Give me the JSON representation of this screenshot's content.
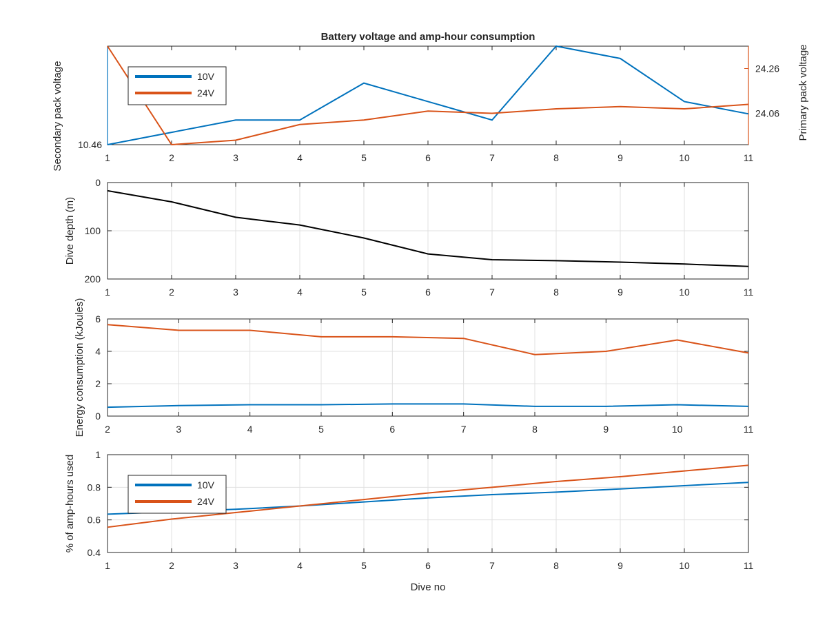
{
  "figure": {
    "title": "Battery voltage and amp-hour consumption",
    "colors": {
      "blue": "#0072bd",
      "orange": "#d95319",
      "black": "#000000",
      "axis": "#262626",
      "grid": "#e0e0e0"
    }
  },
  "chart_data": [
    {
      "id": "voltage",
      "type": "line",
      "title": "Battery voltage and amp-hour consumption",
      "grid": false,
      "legend": "top-left",
      "x": [
        1,
        2,
        3,
        4,
        5,
        6,
        7,
        8,
        9,
        10,
        11
      ],
      "xlim": [
        1,
        11
      ],
      "xticks": [
        "1",
        "2",
        "3",
        "4",
        "5",
        "6",
        "7",
        "8",
        "9",
        "10",
        "11"
      ],
      "xlabel": "",
      "left_axis": {
        "label": "Secondary pack voltage",
        "lim": [
          10.46,
          10.54
        ],
        "ticks": [
          10.46
        ],
        "tick_labels": [
          "10.46"
        ],
        "color": "#0072bd"
      },
      "right_axis": {
        "label": "Primary pack voltage",
        "lim": [
          23.92,
          24.36
        ],
        "ticks": [
          24.06,
          24.26
        ],
        "tick_labels": [
          "24.06",
          "24.26"
        ],
        "color": "#d95319"
      },
      "series": [
        {
          "name": "10V",
          "axis": "left",
          "color": "#0072bd",
          "values": [
            10.46,
            10.47,
            10.48,
            10.48,
            10.51,
            10.495,
            10.48,
            10.54,
            10.53,
            10.495,
            10.485
          ]
        },
        {
          "name": "24V",
          "axis": "right",
          "color": "#d95319",
          "values": [
            24.36,
            23.92,
            23.94,
            24.01,
            24.03,
            24.07,
            24.06,
            24.08,
            24.09,
            24.08,
            24.1
          ]
        }
      ]
    },
    {
      "id": "depth",
      "type": "line",
      "title": "",
      "grid": true,
      "x": [
        1,
        2,
        3,
        4,
        5,
        6,
        7,
        8,
        9,
        10,
        11
      ],
      "xlim": [
        1,
        11
      ],
      "xticks": [
        "1",
        "2",
        "3",
        "4",
        "5",
        "6",
        "7",
        "8",
        "9",
        "10",
        "11"
      ],
      "ylabel": "Dive depth (m)",
      "ylim": [
        0,
        200
      ],
      "yreverse": true,
      "yticks": [
        0,
        100,
        200
      ],
      "ytick_labels": [
        "0",
        "100",
        "200"
      ],
      "series": [
        {
          "color": "#000000",
          "values": [
            17,
            40,
            72,
            88,
            115,
            148,
            160,
            162,
            165,
            169,
            174
          ]
        }
      ]
    },
    {
      "id": "energy",
      "type": "line",
      "title": "",
      "grid": true,
      "x": [
        2,
        3,
        4,
        5,
        6,
        7,
        8,
        9,
        10,
        11
      ],
      "xlim": [
        2,
        11
      ],
      "xticks": [
        "2",
        "3",
        "4",
        "5",
        "6",
        "7",
        "8",
        "9",
        "10",
        "11"
      ],
      "ylabel": "Energy consumption (kJoules)",
      "ylim": [
        0,
        6
      ],
      "yticks": [
        0,
        2,
        4,
        6
      ],
      "ytick_labels": [
        "0",
        "2",
        "4",
        "6"
      ],
      "series": [
        {
          "color": "#0072bd",
          "values": [
            0.55,
            0.65,
            0.7,
            0.7,
            0.75,
            0.75,
            0.6,
            0.6,
            0.7,
            0.6
          ]
        },
        {
          "color": "#d95319",
          "values": [
            5.65,
            5.3,
            5.3,
            4.9,
            4.9,
            4.8,
            3.8,
            4.0,
            4.7,
            3.9
          ]
        }
      ]
    },
    {
      "id": "amphours",
      "type": "line",
      "title": "",
      "grid": true,
      "legend": "top-left",
      "x": [
        1,
        2,
        3,
        4,
        5,
        6,
        7,
        8,
        9,
        10,
        11
      ],
      "xlim": [
        1,
        11
      ],
      "xticks": [
        "1",
        "2",
        "3",
        "4",
        "5",
        "6",
        "7",
        "8",
        "9",
        "10",
        "11"
      ],
      "xlabel": "Dive no",
      "ylabel": "% of amp-hours used",
      "ylim": [
        0.4,
        1
      ],
      "yticks": [
        0.4,
        0.6,
        0.8,
        1
      ],
      "ytick_labels": [
        "0.4",
        "0.6",
        "0.8",
        "1"
      ],
      "series": [
        {
          "name": "10V",
          "color": "#0072bd",
          "values": [
            0.635,
            0.65,
            0.665,
            0.685,
            0.71,
            0.735,
            0.755,
            0.77,
            0.79,
            0.81,
            0.83
          ]
        },
        {
          "name": "24V",
          "color": "#d95319",
          "values": [
            0.555,
            0.605,
            0.645,
            0.685,
            0.725,
            0.765,
            0.8,
            0.835,
            0.865,
            0.9,
            0.935
          ]
        }
      ]
    }
  ]
}
